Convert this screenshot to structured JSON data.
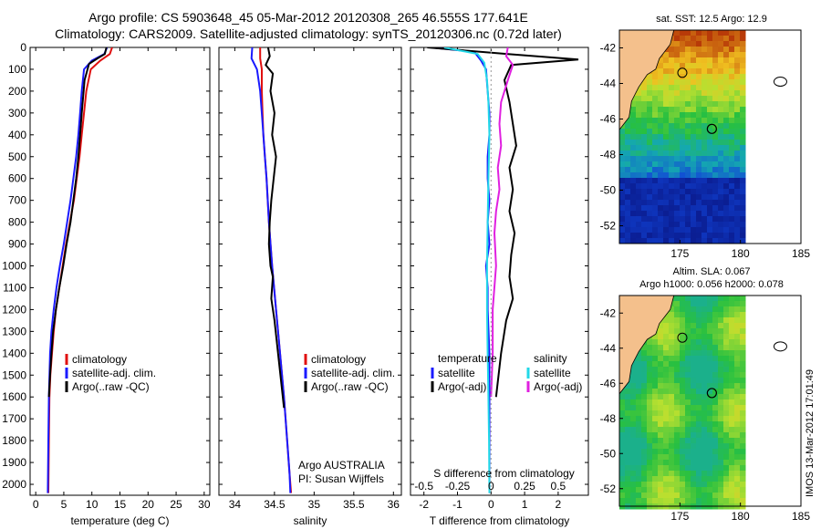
{
  "header": {
    "line1": "Argo profile: CS 5903648_45 05-Mar-2012 20120308_265 46.555S 177.641E",
    "line2": "Climatology: CARS2009. Satellite-adjusted climatology: synTS_20120306.nc (0.72d later)"
  },
  "credit": "IMOS 13-Mar-2012 17:01:49",
  "colors": {
    "climatology": "#e01010",
    "satellite": "#1a1aff",
    "argo": "#000000",
    "salinity_satellite": "#22d8e8",
    "salinity_argo": "#e020e0"
  },
  "chart_data": [
    {
      "id": "temperature",
      "type": "line",
      "xlabel": "temperature (deg C)",
      "ylabel": "",
      "xlim": [
        -1,
        31
      ],
      "ylim": [
        2050,
        0
      ],
      "xticks": [
        0,
        5,
        10,
        15,
        20,
        25,
        30
      ],
      "yticks": [
        0,
        100,
        200,
        300,
        400,
        500,
        600,
        700,
        800,
        900,
        1000,
        1100,
        1200,
        1300,
        1400,
        1500,
        1600,
        1700,
        1800,
        1900,
        2000
      ],
      "legend": [
        "climatology",
        "satellite-adj. clim.",
        "Argo(..raw -QC)"
      ],
      "legend_position": "bottom-right",
      "series": [
        {
          "name": "climatology",
          "color_key": "climatology",
          "x": [
            13.6,
            13.2,
            11.5,
            9.8,
            9.0,
            8.6,
            8.2,
            7.8,
            7.3,
            6.8,
            6.1,
            5.4,
            4.8,
            4.2,
            3.6,
            3.2,
            2.9,
            2.6,
            2.45,
            2.35,
            2.25
          ],
          "y": [
            0,
            30,
            60,
            100,
            200,
            300,
            400,
            500,
            600,
            700,
            800,
            900,
            1000,
            1100,
            1200,
            1300,
            1400,
            1500,
            1600,
            1800,
            2040
          ]
        },
        {
          "name": "satellite-adj. clim.",
          "color_key": "satellite",
          "x": [
            12.7,
            12.2,
            10.0,
            8.6,
            8.2,
            7.9,
            7.6,
            7.2,
            6.7,
            6.2,
            5.6,
            5.0,
            4.3,
            3.7,
            3.2,
            2.8,
            2.55,
            2.35,
            2.25,
            2.15
          ],
          "y": [
            0,
            30,
            60,
            100,
            200,
            300,
            400,
            500,
            600,
            700,
            800,
            900,
            1000,
            1100,
            1200,
            1300,
            1400,
            1600,
            1800,
            2040
          ]
        },
        {
          "name": "Argo(..raw -QC)",
          "color_key": "argo",
          "x": [
            12.6,
            12.3,
            11.0,
            9.5,
            8.7,
            8.2,
            7.9,
            7.6,
            7.2,
            6.7,
            6.2,
            5.5,
            4.9,
            4.2,
            3.6,
            3.1,
            2.8,
            2.55,
            2.35
          ],
          "y": [
            0,
            30,
            50,
            75,
            150,
            300,
            400,
            500,
            600,
            700,
            800,
            900,
            1000,
            1100,
            1200,
            1300,
            1400,
            1500,
            1600
          ]
        }
      ]
    },
    {
      "id": "salinity",
      "type": "line",
      "xlabel": "salinity",
      "xlim": [
        33.8,
        36.1
      ],
      "ylim": [
        2050,
        0
      ],
      "xticks": [
        34,
        34.5,
        35,
        35.5,
        36
      ],
      "legend": [
        "climatology",
        "satellite-adj. clim.",
        "Argo(..raw -QC)"
      ],
      "legend_position": "bottom-right",
      "annotation": [
        "Argo AUSTRALIA",
        "PI: Susan Wijffels"
      ],
      "series": [
        {
          "name": "climatology",
          "color_key": "climatology",
          "x": [
            34.32,
            34.32,
            34.34,
            34.34,
            34.35,
            34.36,
            34.38,
            34.4,
            34.43,
            34.47,
            34.52,
            34.57,
            34.62,
            34.66,
            34.69,
            34.71
          ],
          "y": [
            0,
            50,
            100,
            200,
            300,
            400,
            500,
            600,
            800,
            1000,
            1200,
            1400,
            1600,
            1800,
            1950,
            2040
          ]
        },
        {
          "name": "satellite-adj. clim.",
          "color_key": "satellite",
          "x": [
            34.22,
            34.21,
            34.28,
            34.32,
            34.34,
            34.36,
            34.38,
            34.4,
            34.43,
            34.47,
            34.52,
            34.57,
            34.62,
            34.66,
            34.69,
            34.7
          ],
          "y": [
            0,
            50,
            100,
            200,
            300,
            400,
            500,
            600,
            800,
            1000,
            1200,
            1400,
            1600,
            1800,
            1950,
            2040
          ]
        },
        {
          "name": "Argo(..raw -QC)",
          "color_key": "argo",
          "x": [
            34.42,
            34.44,
            34.39,
            34.48,
            34.45,
            34.5,
            34.47,
            34.52,
            34.49,
            34.46,
            34.44,
            34.43,
            34.45,
            34.48,
            34.46,
            34.5,
            34.53,
            34.56,
            34.59,
            34.62
          ],
          "y": [
            0,
            40,
            80,
            120,
            200,
            300,
            400,
            500,
            600,
            700,
            800,
            900,
            1000,
            1050,
            1150,
            1250,
            1350,
            1450,
            1550,
            1650
          ]
        }
      ]
    },
    {
      "id": "difference",
      "type": "line",
      "xlabel": "T difference from climatology",
      "xlabel_top": "S difference from climatology",
      "xlim": [
        -2.4,
        2.9
      ],
      "ylim": [
        2050,
        0
      ],
      "xticks": [
        -2,
        -1,
        0,
        1,
        2
      ],
      "s_ticks": [
        "-0.5",
        "-0.25",
        "0",
        "0.25",
        "0.5"
      ],
      "s_ticks_x": [
        -2,
        -1,
        0,
        1,
        2
      ],
      "legend_left_title": "temperature",
      "legend_right_title": "salinity",
      "legend": [
        "satellite",
        "Argo(-adj)",
        "satellite",
        "Argo(-adj)"
      ],
      "series": [
        {
          "name": "temperature satellite",
          "color_key": "satellite",
          "x": [
            -1.8,
            -0.5,
            -0.3,
            -0.15,
            -0.1,
            -0.05,
            -0.05,
            -0.1,
            -0.1,
            -0.05,
            -0.1,
            -0.05,
            -0.15,
            -0.1,
            -0.1,
            -0.05,
            -0.05,
            -0.05,
            -0.05
          ],
          "y": [
            0,
            20,
            60,
            100,
            200,
            300,
            400,
            500,
            600,
            700,
            800,
            900,
            1000,
            1100,
            1200,
            1400,
            1600,
            1800,
            2040
          ]
        },
        {
          "name": "temperature Argo(-adj)",
          "color_key": "argo",
          "x": [
            -1.9,
            0.5,
            2.6,
            0.6,
            0.4,
            0.55,
            0.65,
            0.75,
            0.55,
            0.65,
            0.55,
            0.7,
            0.6,
            0.55,
            0.65,
            0.45,
            0.3,
            0.15
          ],
          "y": [
            0,
            30,
            55,
            80,
            150,
            250,
            350,
            450,
            550,
            650,
            750,
            850,
            950,
            1050,
            1150,
            1250,
            1400,
            1600
          ]
        },
        {
          "name": "salinity satellite",
          "color_key": "salinity_satellite",
          "x": [
            -1.4,
            -0.4,
            -0.2,
            -0.12,
            -0.08,
            -0.05,
            -0.08,
            -0.1,
            -0.12,
            -0.12,
            -0.1,
            -0.08,
            -0.06,
            -0.05
          ],
          "y": [
            0,
            30,
            70,
            150,
            250,
            400,
            600,
            800,
            1000,
            1200,
            1400,
            1600,
            1800,
            2040
          ]
        },
        {
          "name": "salinity Argo(-adj)",
          "color_key": "salinity_argo",
          "x": [
            0.5,
            0.45,
            0.65,
            0.5,
            0.3,
            0.25,
            0.3,
            0.2,
            0.25,
            0.15,
            0.1,
            0.15,
            0.05,
            0.05,
            0.0
          ],
          "y": [
            0,
            40,
            80,
            150,
            250,
            350,
            450,
            550,
            650,
            750,
            850,
            1000,
            1200,
            1400,
            1600
          ]
        }
      ]
    },
    {
      "id": "sst_map",
      "type": "heatmap",
      "title": "sat. SST: 12.5  Argo: 12.9",
      "xlim": [
        170,
        185
      ],
      "ylim": [
        -53,
        -41
      ],
      "xticks": [
        175,
        180,
        185
      ],
      "yticks": [
        -42,
        -44,
        -46,
        -48,
        -50,
        -52
      ],
      "argo_position": [
        177.641,
        -46.555
      ]
    },
    {
      "id": "sla_map",
      "type": "heatmap",
      "title": [
        "Altim. SLA: 0.067",
        "Argo h1000: 0.056 h2000: 0.078"
      ],
      "xlim": [
        170,
        185
      ],
      "ylim": [
        -53,
        -41
      ],
      "xticks": [
        175,
        180,
        185
      ],
      "yticks": [
        -42,
        -44,
        -46,
        -48,
        -50,
        -52
      ],
      "argo_position": [
        177.641,
        -46.555
      ]
    }
  ]
}
